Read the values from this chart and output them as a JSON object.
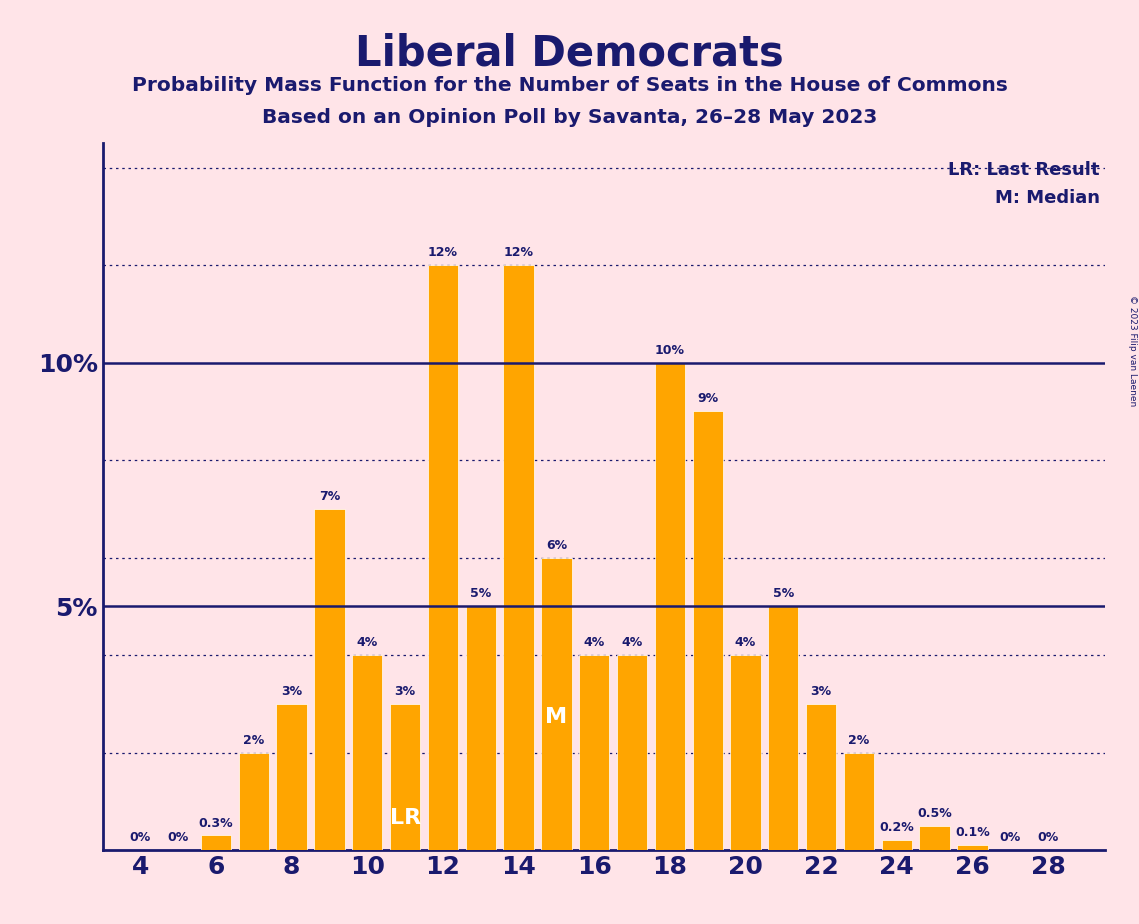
{
  "title": "Liberal Democrats",
  "subtitle1": "Probability Mass Function for the Number of Seats in the House of Commons",
  "subtitle2": "Based on an Opinion Poll by Savanta, 26–28 May 2023",
  "copyright": "© 2023 Filip van Laenen",
  "legend_lr": "LR: Last Result",
  "legend_m": "M: Median",
  "seats": [
    4,
    5,
    6,
    7,
    8,
    9,
    10,
    11,
    12,
    13,
    14,
    15,
    16,
    17,
    18,
    19,
    20,
    21,
    22,
    23,
    24,
    25,
    26,
    27,
    28
  ],
  "probabilities": [
    0.0,
    0.0,
    0.003,
    0.02,
    0.03,
    0.07,
    0.04,
    0.03,
    0.12,
    0.05,
    0.12,
    0.06,
    0.04,
    0.04,
    0.1,
    0.09,
    0.04,
    0.05,
    0.03,
    0.02,
    0.002,
    0.005,
    0.001,
    0.0,
    0.0
  ],
  "labels": [
    "0%",
    "0%",
    "0.3%",
    "2%",
    "3%",
    "7%",
    "4%",
    "3%",
    "12%",
    "5%",
    "12%",
    "6%",
    "4%",
    "4%",
    "10%",
    "9%",
    "4%",
    "5%",
    "3%",
    "2%",
    "0.2%",
    "0.5%",
    "0.1%",
    "0%",
    "0%"
  ],
  "lr_seat": 11,
  "median_seat": 15,
  "bar_color": "#FFA500",
  "bg_color": "#FFE4E8",
  "text_color": "#1a1a6e",
  "ylim": [
    0,
    0.145
  ],
  "xlim": [
    3.0,
    29.5
  ],
  "solid_hlines": [
    0.05,
    0.1
  ],
  "dotted_hlines": [
    0.02,
    0.04,
    0.06,
    0.08,
    0.12,
    0.14
  ],
  "ytick_vals": [
    0.05,
    0.1
  ],
  "ytick_labels": [
    "5%",
    "10%"
  ],
  "xtick_vals": [
    4,
    6,
    8,
    10,
    12,
    14,
    16,
    18,
    20,
    22,
    24,
    26,
    28
  ],
  "bar_width": 0.8
}
